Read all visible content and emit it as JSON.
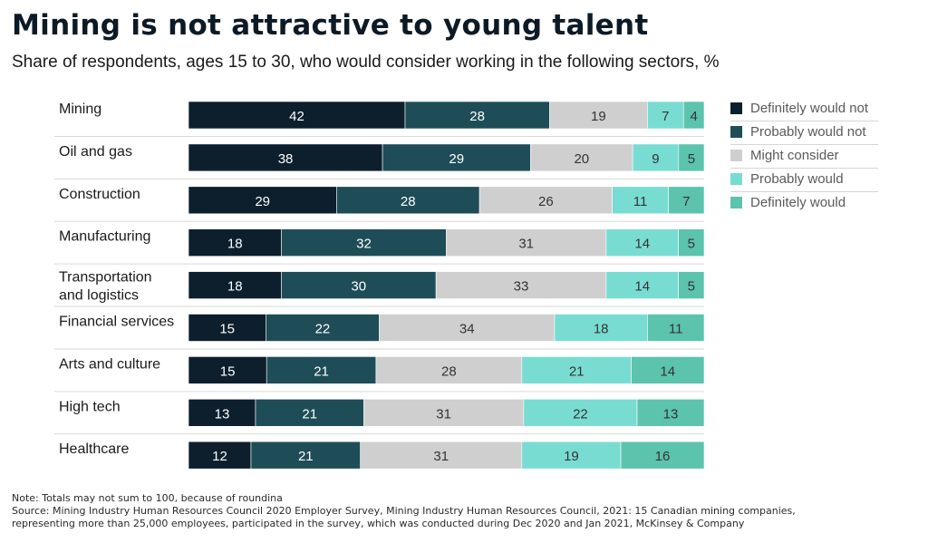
{
  "title": "Mining is not attractive to young talent",
  "subtitle": "Share of respondents, ages 15 to 30, who would consider working in the following sectors, %",
  "note_lines": {
    "line1": "Note: Totals may not sum to 100, because of roundina",
    "line2": "Source: Mining Industry Human Resources Council 2020 Employer Survey, Mining Industry Human Resources Council, 2021: 15 Canadian mining companies,",
    "line3": "representing more than 25,000 employees, participated in the survey, which was conducted during Dec 2020 and Jan 2021, McKinsey & Company"
  },
  "colors": {
    "definitely_would_not": "#0d1f2d",
    "probably_would_not": "#1e4d57",
    "might_consider": "#cfcfcf",
    "probably_would": "#79dcd2",
    "definitely_would": "#5cc3ad"
  },
  "chart_data": {
    "type": "bar",
    "orientation": "horizontal-stacked",
    "categories": [
      "Mining",
      "Oil and gas",
      "Construction",
      "Manufacturing",
      "Transportation and logistics",
      "Financial services",
      "Arts and culture",
      "High tech",
      "Healthcare"
    ],
    "series": [
      {
        "name": "Definitely would not",
        "values": [
          42,
          38,
          29,
          18,
          18,
          15,
          15,
          13,
          12
        ]
      },
      {
        "name": "Probably would not",
        "values": [
          28,
          29,
          28,
          32,
          30,
          22,
          21,
          21,
          21
        ]
      },
      {
        "name": "Might consider",
        "values": [
          19,
          20,
          26,
          31,
          33,
          34,
          28,
          31,
          31
        ]
      },
      {
        "name": "Probably would",
        "values": [
          7,
          9,
          11,
          14,
          14,
          18,
          21,
          22,
          19
        ]
      },
      {
        "name": "Definitely would",
        "values": [
          4,
          5,
          7,
          5,
          5,
          11,
          14,
          13,
          16
        ]
      }
    ],
    "legend_position": "right",
    "grid": false
  }
}
